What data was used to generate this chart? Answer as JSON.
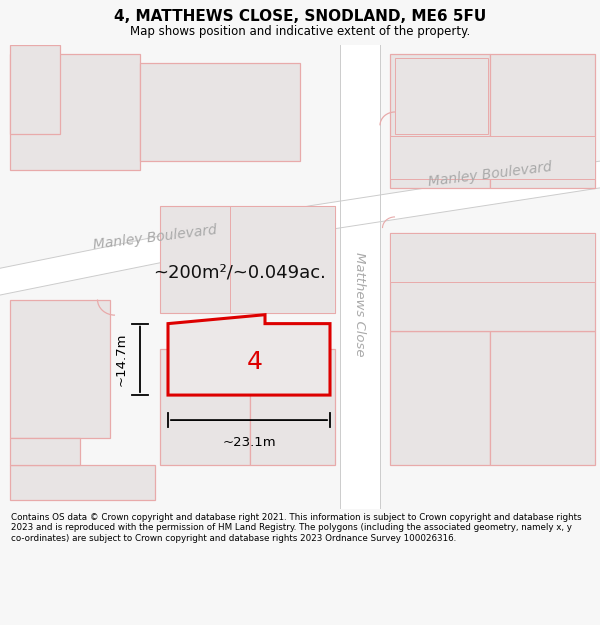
{
  "title": "4, MATTHEWS CLOSE, SNODLAND, ME6 5FU",
  "subtitle": "Map shows position and indicative extent of the property.",
  "footer": "Contains OS data © Crown copyright and database right 2021. This information is subject to Crown copyright and database rights 2023 and is reproduced with the permission of HM Land Registry. The polygons (including the associated geometry, namely x, y co-ordinates) are subject to Crown copyright and database rights 2023 Ordnance Survey 100026316.",
  "area_text": "~200m²/~0.049ac.",
  "width_label": "~23.1m",
  "height_label": "~14.7m",
  "plot_number": "4",
  "bg_color": "#f7f7f7",
  "map_bg": "#f2f0f0",
  "road_color": "#ffffff",
  "building_outline_color": "#e8aaaa",
  "building_fill_color": "#e8e4e4",
  "highlight_color": "#dd0000",
  "highlight_fill": "#ece8e8",
  "road_label_color": "#aaaaaa",
  "annotation_color": "#111111"
}
